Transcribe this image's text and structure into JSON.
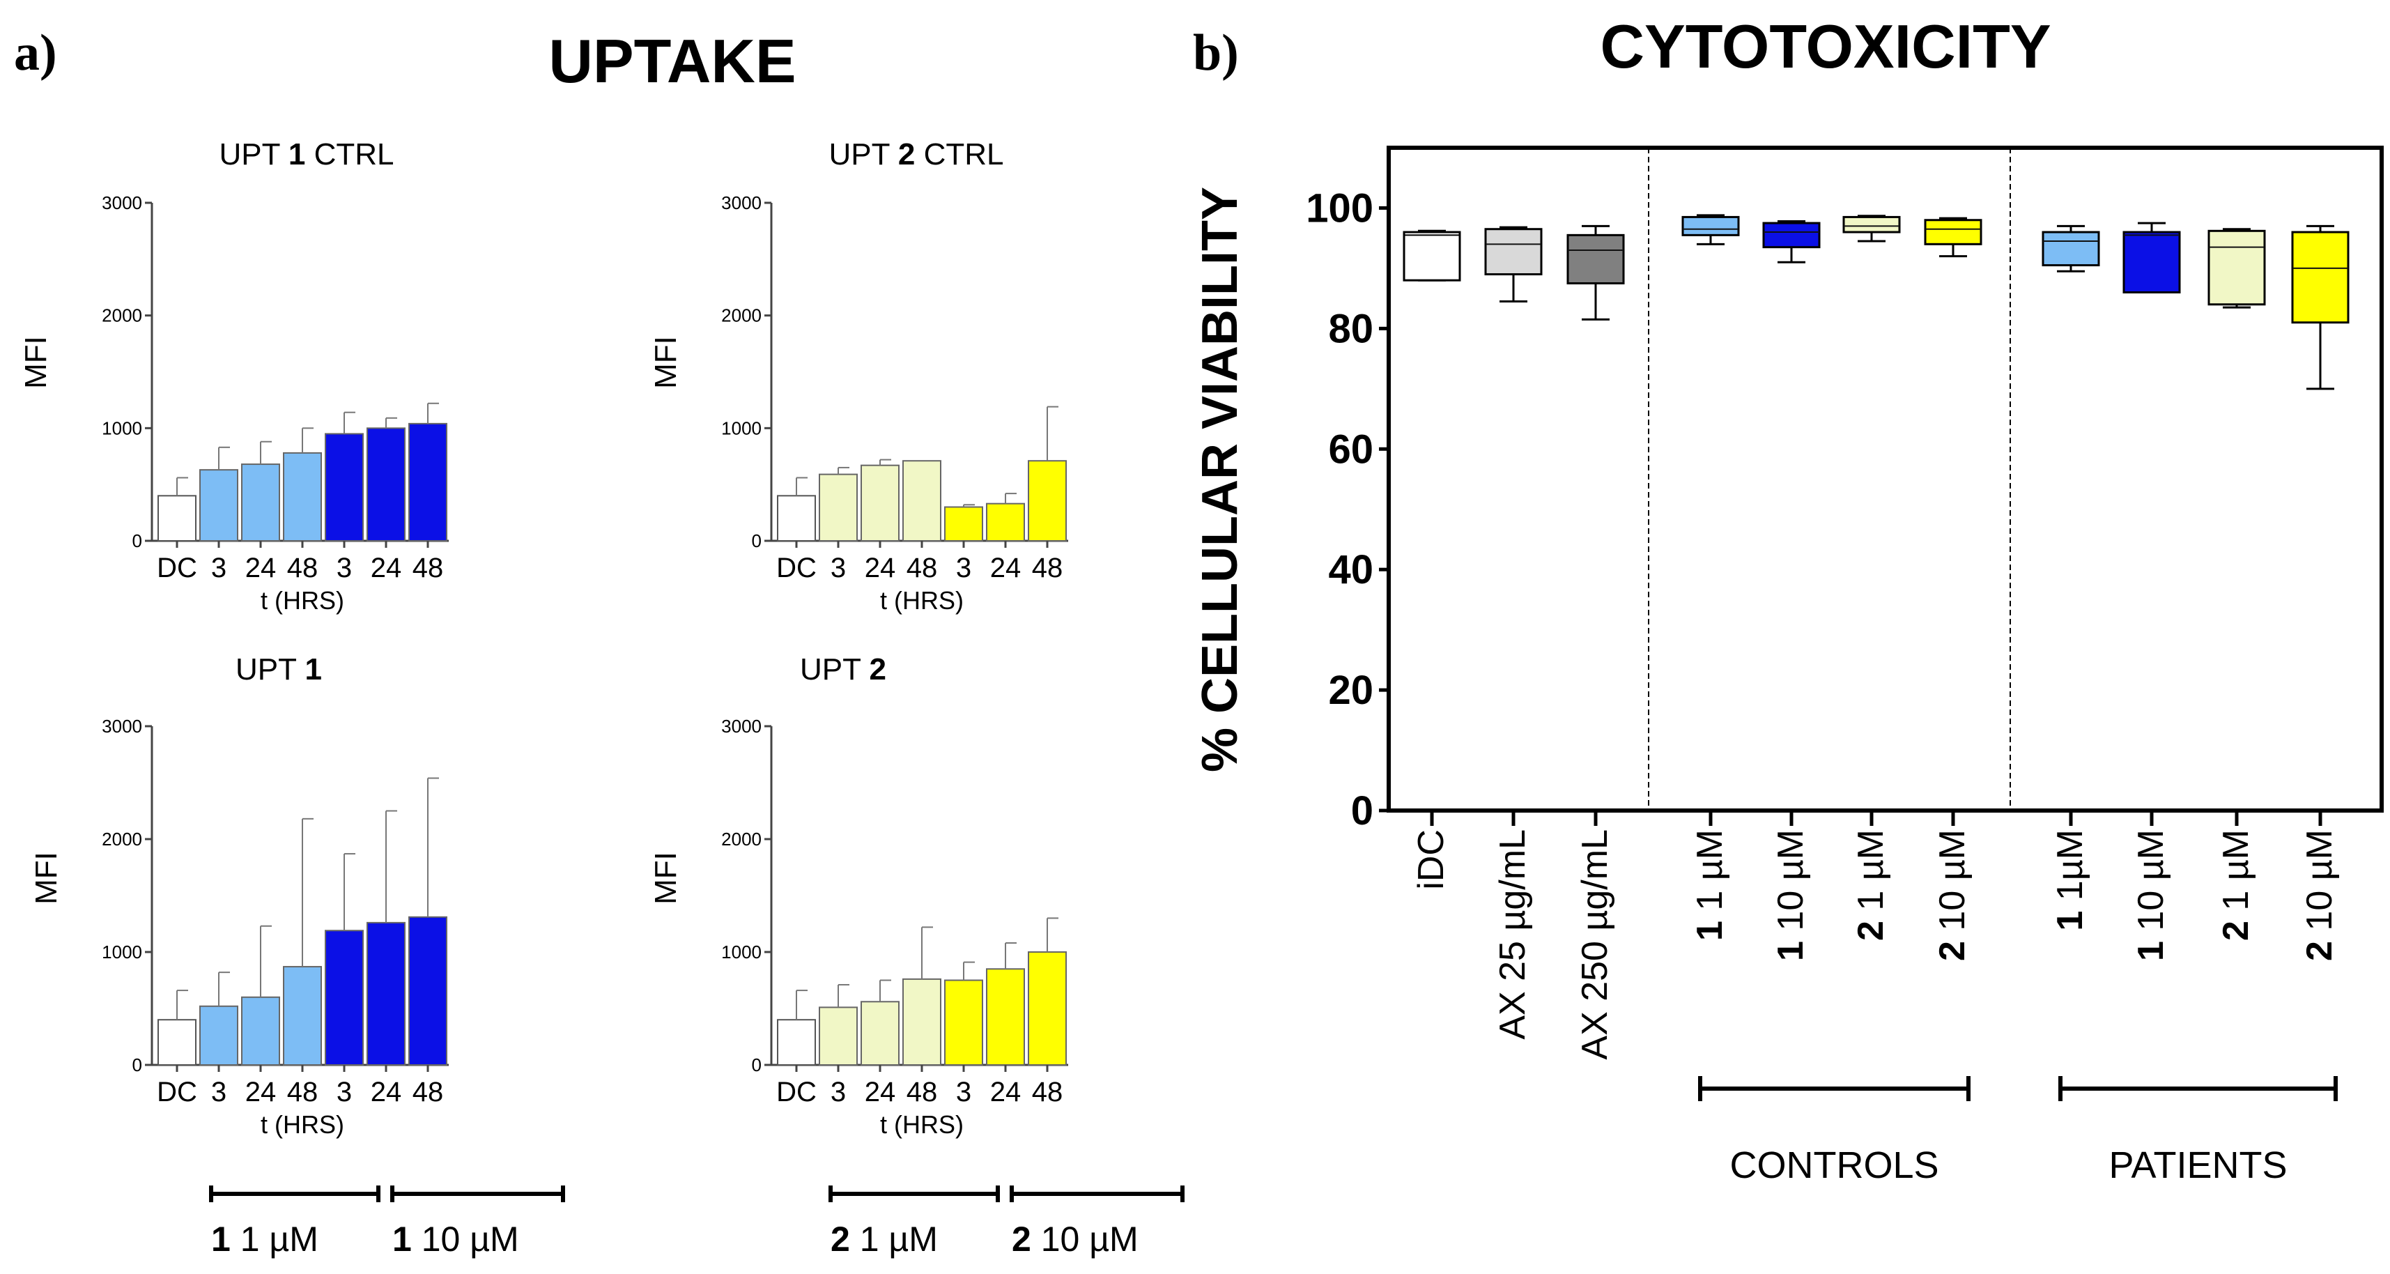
{
  "panel_labels": {
    "a": "a)",
    "b": "b)"
  },
  "titles": {
    "uptake": "UPTAKE",
    "cytotoxicity": "CYTOTOXICITY"
  },
  "colors": {
    "white": "#ffffff",
    "light_blue": "#7dbdf5",
    "dark_blue": "#0b10e6",
    "light_yellow": "#f1f7c6",
    "yellow": "#ffff00",
    "light_gray": "#d9d9d9",
    "dark_gray": "#808080",
    "stroke": "#000000",
    "axis": "#444444"
  },
  "uptake_axis": {
    "ylabel": "MFI",
    "xlabel": "t (HRS)",
    "ylim": [
      0,
      3000
    ],
    "yticks": [
      "0",
      "1000",
      "2000",
      "3000"
    ],
    "categories": [
      "DC",
      "3",
      "24",
      "48",
      "3",
      "24",
      "48"
    ]
  },
  "chart_data": [
    {
      "type": "bar",
      "title_prefix": "UPT ",
      "title_num": "1",
      "title_suffix": " CTRL",
      "categories": [
        "DC",
        "3",
        "24",
        "48",
        "3",
        "24",
        "48"
      ],
      "values": [
        400,
        630,
        680,
        780,
        950,
        1000,
        1040
      ],
      "errors": [
        160,
        200,
        200,
        220,
        190,
        90,
        180
      ],
      "fills": [
        "white",
        "light_blue",
        "light_blue",
        "light_blue",
        "dark_blue",
        "dark_blue",
        "dark_blue"
      ],
      "ylim": [
        0,
        3000
      ],
      "xlabel": "t (HRS)",
      "ylabel": "MFI"
    },
    {
      "type": "bar",
      "title_prefix": "UPT ",
      "title_num": "2",
      "title_suffix": " CTRL",
      "categories": [
        "DC",
        "3",
        "24",
        "48",
        "3",
        "24",
        "48"
      ],
      "values": [
        400,
        590,
        670,
        710,
        300,
        330,
        710
      ],
      "errors": [
        160,
        60,
        50,
        0,
        20,
        90,
        480
      ],
      "fills": [
        "white",
        "light_yellow",
        "light_yellow",
        "light_yellow",
        "yellow",
        "yellow",
        "yellow"
      ],
      "ylim": [
        0,
        3000
      ],
      "xlabel": "t (HRS)",
      "ylabel": "MFI"
    },
    {
      "type": "bar",
      "title_prefix": "UPT ",
      "title_num": "1",
      "title_suffix": "",
      "categories": [
        "DC",
        "3",
        "24",
        "48",
        "3",
        "24",
        "48"
      ],
      "values": [
        400,
        520,
        600,
        870,
        1190,
        1260,
        1310
      ],
      "errors": [
        260,
        300,
        630,
        1310,
        680,
        990,
        1230
      ],
      "fills": [
        "white",
        "light_blue",
        "light_blue",
        "light_blue",
        "dark_blue",
        "dark_blue",
        "dark_blue"
      ],
      "ylim": [
        0,
        3000
      ],
      "xlabel": "t (HRS)",
      "ylabel": "MFI",
      "groups": [
        {
          "num": "1",
          "label": " 1 µM"
        },
        {
          "num": "1",
          "label": " 10 µM"
        }
      ]
    },
    {
      "type": "bar",
      "title_prefix": "UPT ",
      "title_num": "2",
      "title_suffix": "",
      "categories": [
        "DC",
        "3",
        "24",
        "48",
        "3",
        "24",
        "48"
      ],
      "values": [
        400,
        510,
        560,
        760,
        750,
        850,
        1000
      ],
      "errors": [
        260,
        200,
        190,
        460,
        160,
        230,
        300
      ],
      "fills": [
        "white",
        "light_yellow",
        "light_yellow",
        "light_yellow",
        "yellow",
        "yellow",
        "yellow"
      ],
      "ylim": [
        0,
        3000
      ],
      "xlabel": "t (HRS)",
      "ylabel": "MFI",
      "groups": [
        {
          "num": "2",
          "label": " 1 µM"
        },
        {
          "num": "2",
          "label": " 10 µM"
        }
      ]
    },
    {
      "type": "box",
      "title": "CYTOTOXICITY",
      "ylabel": "% CELLULAR VIABILITY",
      "ylim": [
        0,
        110
      ],
      "yticks": [
        "0",
        "20",
        "40",
        "60",
        "80",
        "100"
      ],
      "boxes": [
        {
          "label": "iDC",
          "num": "",
          "min": 88,
          "q1": 88,
          "median": 95.5,
          "q3": 96,
          "max": 96.2,
          "fill": "white"
        },
        {
          "label": "AX 25 µg/mL",
          "num": "",
          "min": 84.5,
          "q1": 89,
          "median": 94,
          "q3": 96.5,
          "max": 96.8,
          "fill": "light_gray"
        },
        {
          "label": "AX 250 µg/mL",
          "num": "",
          "min": 81.5,
          "q1": 87.5,
          "median": 93,
          "q3": 95.5,
          "max": 97,
          "fill": "dark_gray"
        },
        {
          "label": " 1 µM",
          "num": "1",
          "min": 94,
          "q1": 95.5,
          "median": 96.5,
          "q3": 98.5,
          "max": 98.8,
          "fill": "light_blue"
        },
        {
          "label": " 10 µM",
          "num": "1",
          "min": 91,
          "q1": 93.5,
          "median": 96,
          "q3": 97.5,
          "max": 97.8,
          "fill": "dark_blue"
        },
        {
          "label": " 1 µM",
          "num": "2",
          "min": 94.5,
          "q1": 96,
          "median": 97,
          "q3": 98.5,
          "max": 98.7,
          "fill": "light_yellow"
        },
        {
          "label": " 10 µM",
          "num": "2",
          "min": 92,
          "q1": 94,
          "median": 96.5,
          "q3": 98,
          "max": 98.3,
          "fill": "yellow"
        },
        {
          "label": " 1µM",
          "num": "1",
          "min": 89.5,
          "q1": 90.5,
          "median": 94.5,
          "q3": 96,
          "max": 97,
          "fill": "light_blue"
        },
        {
          "label": " 10 µM",
          "num": "1",
          "min": 86,
          "q1": 86,
          "median": 95.5,
          "q3": 96,
          "max": 97.5,
          "fill": "dark_blue"
        },
        {
          "label": " 1 µM",
          "num": "2",
          "min": 83.5,
          "q1": 84,
          "median": 93.5,
          "q3": 96.2,
          "max": 96.5,
          "fill": "light_yellow"
        },
        {
          "label": " 10 µM",
          "num": "2",
          "min": 70,
          "q1": 81,
          "median": 90,
          "q3": 96,
          "max": 97,
          "fill": "yellow"
        }
      ],
      "groups": [
        {
          "label": "CONTROLS",
          "from": 3,
          "to": 6
        },
        {
          "label": "PATIENTS",
          "from": 7,
          "to": 10
        }
      ]
    }
  ]
}
